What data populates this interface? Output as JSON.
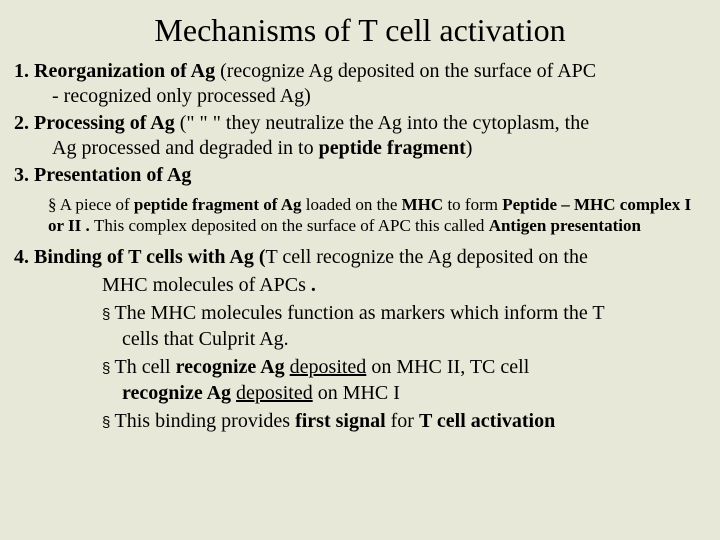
{
  "title": "Mechanisms of T cell activation",
  "items": {
    "one": {
      "label": "1. Reorganization of Ag",
      "rest": " (recognize Ag deposited on the surface of APC",
      "cont": "- recognized only processed Ag)"
    },
    "two": {
      "label": "2. Processing of Ag",
      "rest1": "  (\" \" \" they neutralize the Ag into the cytoplasm, the",
      "rest2a": "Ag processed and degraded in to ",
      "rest2b": "peptide fragment",
      "rest2c": ")"
    },
    "three": {
      "label": "3. Presentation of Ag"
    },
    "sub3": {
      "marker": "§",
      "t1": "      A piece of ",
      "t2": "peptide fragment of Ag ",
      "t3": "loaded on the ",
      "t4": "MHC ",
      "t5": "to form ",
      "t6": "Peptide – MHC complex I or II . ",
      "t7": "This complex deposited on the surface of APC this called ",
      "t8": "Antigen presentation"
    },
    "four": {
      "label": "4. Binding of T cells with Ag (",
      "rest1": "T cell recognize the Ag deposited on the",
      "cont": "MHC molecules of APCs ",
      "dot": "."
    },
    "s4a": {
      "m": "§ ",
      "t1": "The MHC molecules function as markers which inform the T",
      "t2": "cells that Culprit Ag."
    },
    "s4b": {
      "m": "§ ",
      "t1a": "Th cell ",
      "t1b": "recognize Ag ",
      "t1c": "deposited",
      "t1d": " on MHC II, TC cell",
      "t2a": "recognize Ag ",
      "t2b": "deposited",
      "t2c": " on MHC I"
    },
    "s4c": {
      "m": "§ ",
      "t1": "This binding provides ",
      "t2": "first signal",
      "t3": " for ",
      "t4": "T cell activation"
    }
  }
}
